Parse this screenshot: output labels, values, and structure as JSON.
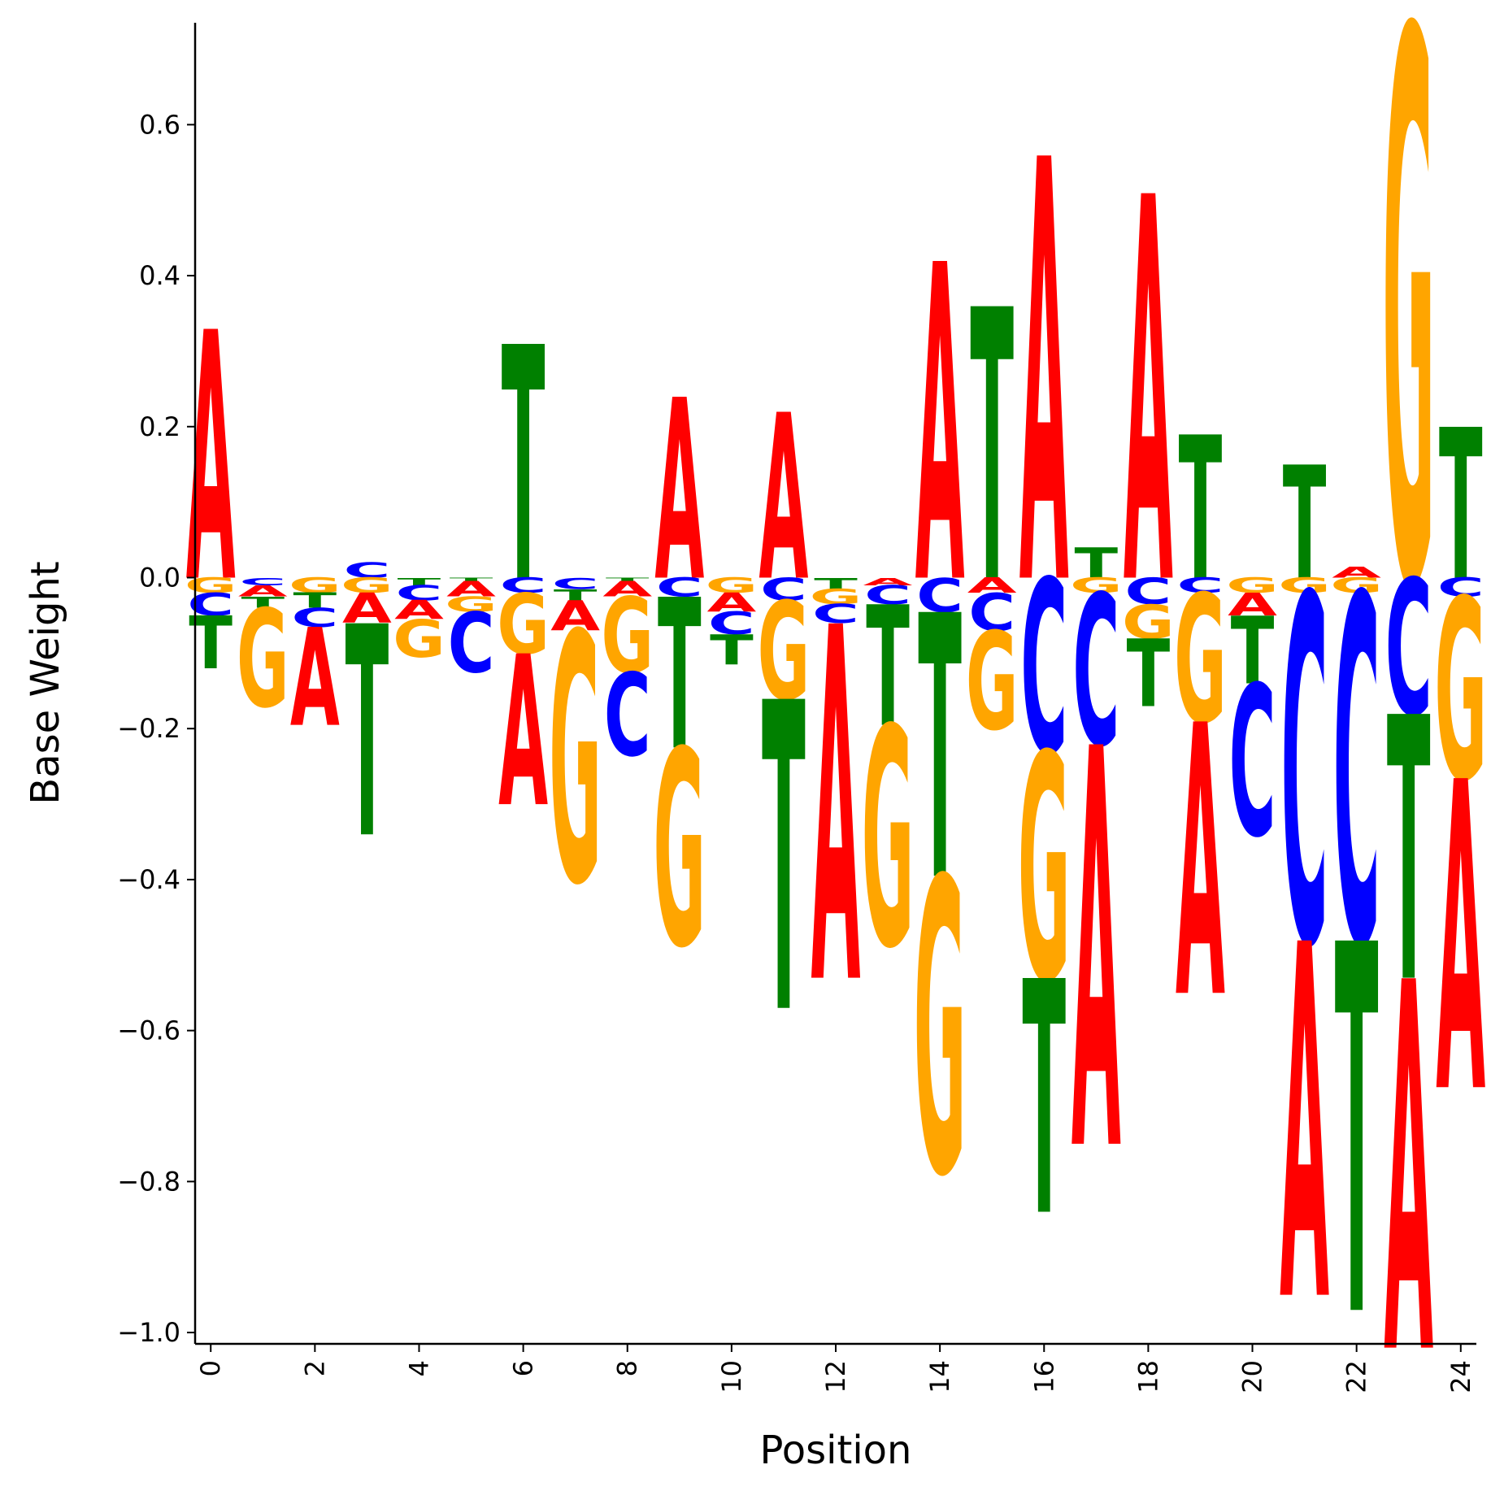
{
  "chart_data": {
    "type": "sequence-logo",
    "xlabel": "Position",
    "ylabel": "Base Weight",
    "xlim": [
      -0.3,
      24.3
    ],
    "ylim": [
      -1.015,
      0.735
    ],
    "xticks": [
      0,
      2,
      4,
      6,
      8,
      10,
      12,
      14,
      16,
      18,
      20,
      22,
      24
    ],
    "xtick_labels": [
      "0",
      "2",
      "4",
      "6",
      "8",
      "10",
      "12",
      "14",
      "16",
      "18",
      "20",
      "22",
      "24"
    ],
    "yticks": [
      -1.0,
      -0.8,
      -0.6,
      -0.4,
      -0.2,
      0.0,
      0.2,
      0.4,
      0.6
    ],
    "ytick_labels": [
      "−1.0",
      "−0.8",
      "−0.6",
      "−0.4",
      "−0.2",
      "0.0",
      "0.2",
      "0.4",
      "0.6"
    ],
    "colors": {
      "A": "#ff0000",
      "C": "#0000ff",
      "G": "#ffa500",
      "T": "#008000"
    },
    "positions": [
      {
        "pos": 0,
        "A": 0.33,
        "C": -0.03,
        "G": -0.02,
        "T": -0.07
      },
      {
        "pos": 1,
        "A": -0.015,
        "C": -0.01,
        "G": -0.13,
        "T": -0.015
      },
      {
        "pos": 2,
        "A": -0.13,
        "C": -0.025,
        "G": -0.02,
        "T": -0.02
      },
      {
        "pos": 3,
        "A": -0.04,
        "C": 0.02,
        "G": -0.02,
        "T": -0.28
      },
      {
        "pos": 4,
        "A": -0.025,
        "C": -0.02,
        "G": -0.05,
        "T": -0.01
      },
      {
        "pos": 5,
        "A": -0.02,
        "C": -0.08,
        "G": -0.02,
        "T": -0.005
      },
      {
        "pos": 6,
        "A": -0.2,
        "C": -0.02,
        "G": -0.08,
        "T": 0.31
      },
      {
        "pos": 7,
        "A": -0.04,
        "C": -0.015,
        "G": -0.33,
        "T": -0.015
      },
      {
        "pos": 8,
        "A": -0.02,
        "C": -0.11,
        "G": -0.1,
        "T": -0.005
      },
      {
        "pos": 9,
        "A": 0.24,
        "C": -0.025,
        "G": -0.26,
        "T": -0.2
      },
      {
        "pos": 10,
        "A": -0.025,
        "C": -0.03,
        "G": -0.02,
        "T": -0.04
      },
      {
        "pos": 11,
        "A": 0.22,
        "C": -0.03,
        "G": -0.13,
        "T": -0.41
      },
      {
        "pos": 12,
        "A": -0.47,
        "C": -0.025,
        "G": -0.02,
        "T": -0.015
      },
      {
        "pos": 13,
        "A": -0.01,
        "C": -0.025,
        "G": -0.29,
        "T": -0.16
      },
      {
        "pos": 14,
        "A": 0.42,
        "C": -0.045,
        "G": -0.39,
        "T": -0.35
      },
      {
        "pos": 15,
        "A": -0.02,
        "C": -0.05,
        "G": -0.13,
        "T": 0.36
      },
      {
        "pos": 16,
        "A": 0.56,
        "C": -0.23,
        "G": -0.3,
        "T": -0.31
      },
      {
        "pos": 17,
        "A": -0.53,
        "C": -0.2,
        "G": -0.02,
        "T": 0.04
      },
      {
        "pos": 18,
        "A": 0.51,
        "C": -0.035,
        "G": -0.045,
        "T": -0.09
      },
      {
        "pos": 19,
        "A": -0.36,
        "C": -0.02,
        "G": -0.17,
        "T": 0.19
      },
      {
        "pos": 20,
        "A": -0.03,
        "C": -0.2,
        "G": -0.02,
        "T": -0.09
      },
      {
        "pos": 21,
        "A": -0.47,
        "C": -0.46,
        "G": -0.02,
        "T": 0.15
      },
      {
        "pos": 22,
        "A": 0.015,
        "C": -0.46,
        "G": -0.02,
        "T": -0.49
      },
      {
        "pos": 23,
        "A": -0.49,
        "C": -0.18,
        "G": 0.73,
        "T": -0.35
      },
      {
        "pos": 24,
        "A": -0.41,
        "C": -0.025,
        "G": -0.24,
        "T": 0.2
      }
    ]
  }
}
